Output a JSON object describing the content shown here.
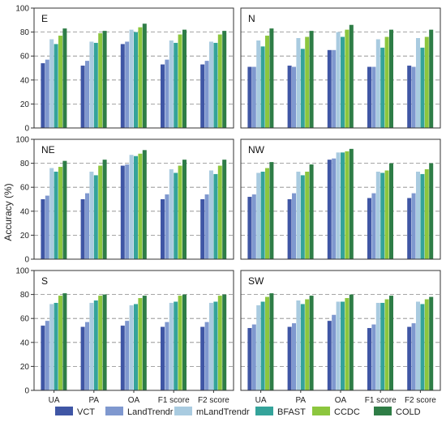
{
  "figure": {
    "ylabel": "Accuracy (%)"
  },
  "chart_data": [
    {
      "type": "bar",
      "panel": "E",
      "categories": [
        "UA",
        "PA",
        "OA",
        "F1 score",
        "F2 score"
      ],
      "ylim": [
        0,
        100
      ],
      "yticks": [
        0,
        20,
        40,
        60,
        80,
        100
      ],
      "dashed_grid_y": [
        20,
        40,
        60,
        80
      ],
      "series": [
        {
          "name": "VCT",
          "values": [
            54,
            52,
            70,
            53,
            53
          ]
        },
        {
          "name": "LandTrendr",
          "values": [
            57,
            56,
            72,
            57,
            56
          ]
        },
        {
          "name": "mLandTrendr",
          "values": [
            74,
            72,
            82,
            73,
            72
          ]
        },
        {
          "name": "BFAST",
          "values": [
            70,
            71,
            80,
            71,
            71
          ]
        },
        {
          "name": "CCDC",
          "values": [
            77,
            79,
            84,
            78,
            78
          ]
        },
        {
          "name": "COLD",
          "values": [
            83,
            81,
            87,
            82,
            81
          ]
        }
      ]
    },
    {
      "type": "bar",
      "panel": "N",
      "categories": [
        "UA",
        "PA",
        "OA",
        "F1 score",
        "F2 score"
      ],
      "ylim": [
        0,
        100
      ],
      "yticks": [
        0,
        20,
        40,
        60,
        80,
        100
      ],
      "dashed_grid_y": [
        20,
        40,
        60,
        80
      ],
      "series": [
        {
          "name": "VCT",
          "values": [
            51,
            52,
            65,
            51,
            52
          ]
        },
        {
          "name": "LandTrendr",
          "values": [
            51,
            51,
            65,
            51,
            51
          ]
        },
        {
          "name": "mLandTrendr",
          "values": [
            73,
            75,
            80,
            74,
            75
          ]
        },
        {
          "name": "BFAST",
          "values": [
            68,
            66,
            76,
            67,
            67
          ]
        },
        {
          "name": "CCDC",
          "values": [
            77,
            76,
            82,
            76,
            76
          ]
        },
        {
          "name": "COLD",
          "values": [
            83,
            81,
            86,
            82,
            82
          ]
        }
      ]
    },
    {
      "type": "bar",
      "panel": "NE",
      "categories": [
        "UA",
        "PA",
        "OA",
        "F1 score",
        "F2 score"
      ],
      "ylim": [
        0,
        100
      ],
      "yticks": [
        0,
        20,
        40,
        60,
        80,
        100
      ],
      "dashed_grid_y": [
        20,
        40,
        60,
        80
      ],
      "series": [
        {
          "name": "VCT",
          "values": [
            50,
            50,
            78,
            50,
            50
          ]
        },
        {
          "name": "LandTrendr",
          "values": [
            53,
            55,
            79,
            54,
            54
          ]
        },
        {
          "name": "mLandTrendr",
          "values": [
            76,
            73,
            87,
            75,
            74
          ]
        },
        {
          "name": "BFAST",
          "values": [
            73,
            70,
            86,
            72,
            71
          ]
        },
        {
          "name": "CCDC",
          "values": [
            77,
            78,
            88,
            78,
            78
          ]
        },
        {
          "name": "COLD",
          "values": [
            82,
            83,
            91,
            83,
            83
          ]
        }
      ]
    },
    {
      "type": "bar",
      "panel": "NW",
      "categories": [
        "UA",
        "PA",
        "OA",
        "F1 score",
        "F2 score"
      ],
      "ylim": [
        0,
        100
      ],
      "yticks": [
        0,
        20,
        40,
        60,
        80,
        100
      ],
      "dashed_grid_y": [
        20,
        40,
        60,
        80
      ],
      "series": [
        {
          "name": "VCT",
          "values": [
            52,
            50,
            83,
            51,
            51
          ]
        },
        {
          "name": "LandTrendr",
          "values": [
            54,
            55,
            84,
            55,
            55
          ]
        },
        {
          "name": "mLandTrendr",
          "values": [
            72,
            73,
            89,
            73,
            73
          ]
        },
        {
          "name": "BFAST",
          "values": [
            73,
            70,
            89,
            72,
            71
          ]
        },
        {
          "name": "CCDC",
          "values": [
            76,
            73,
            90,
            74,
            75
          ]
        },
        {
          "name": "COLD",
          "values": [
            81,
            79,
            92,
            80,
            80
          ]
        }
      ]
    },
    {
      "type": "bar",
      "panel": "S",
      "categories": [
        "UA",
        "PA",
        "OA",
        "F1 score",
        "F2 score"
      ],
      "ylim": [
        0,
        100
      ],
      "yticks": [
        0,
        20,
        40,
        60,
        80,
        100
      ],
      "dashed_grid_y": [
        20,
        40,
        60,
        80
      ],
      "series": [
        {
          "name": "VCT",
          "values": [
            54,
            53,
            54,
            53,
            53
          ]
        },
        {
          "name": "LandTrendr",
          "values": [
            58,
            57,
            58,
            57,
            57
          ]
        },
        {
          "name": "mLandTrendr",
          "values": [
            72,
            73,
            71,
            73,
            73
          ]
        },
        {
          "name": "BFAST",
          "values": [
            73,
            75,
            72,
            74,
            74
          ]
        },
        {
          "name": "CCDC",
          "values": [
            79,
            79,
            77,
            79,
            79
          ]
        },
        {
          "name": "COLD",
          "values": [
            81,
            80,
            79,
            80,
            80
          ]
        }
      ]
    },
    {
      "type": "bar",
      "panel": "SW",
      "categories": [
        "UA",
        "PA",
        "OA",
        "F1 score",
        "F2 score"
      ],
      "ylim": [
        0,
        100
      ],
      "yticks": [
        0,
        20,
        40,
        60,
        80,
        100
      ],
      "dashed_grid_y": [
        20,
        40,
        60,
        80
      ],
      "series": [
        {
          "name": "VCT",
          "values": [
            52,
            53,
            58,
            52,
            53
          ]
        },
        {
          "name": "LandTrendr",
          "values": [
            55,
            56,
            63,
            55,
            56
          ]
        },
        {
          "name": "mLandTrendr",
          "values": [
            71,
            75,
            74,
            73,
            74
          ]
        },
        {
          "name": "BFAST",
          "values": [
            74,
            72,
            74,
            73,
            72
          ]
        },
        {
          "name": "CCDC",
          "values": [
            78,
            76,
            77,
            76,
            76
          ]
        },
        {
          "name": "COLD",
          "values": [
            81,
            79,
            80,
            79,
            78
          ]
        }
      ]
    }
  ],
  "legend": {
    "placement": "bottom",
    "items": [
      {
        "label": "VCT",
        "color": "#3f56a5"
      },
      {
        "label": "LandTrendr",
        "color": "#7f98cf"
      },
      {
        "label": "mLandTrendr",
        "color": "#a9cbe0"
      },
      {
        "label": "BFAST",
        "color": "#34a39a"
      },
      {
        "label": "CCDC",
        "color": "#8cc63e"
      },
      {
        "label": "COLD",
        "color": "#2e7d46"
      }
    ]
  }
}
